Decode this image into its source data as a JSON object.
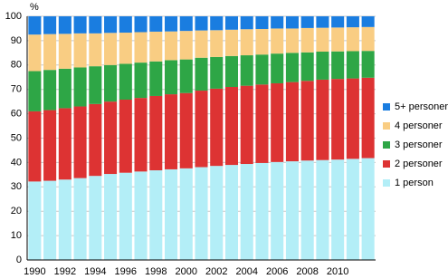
{
  "chart_data": {
    "type": "stacked-bar",
    "ylabel": "%",
    "categories": [
      "1990",
      null,
      "1992",
      null,
      "1994",
      null,
      "1996",
      null,
      "1998",
      null,
      "2000",
      null,
      "2002",
      null,
      "2004",
      null,
      "2006",
      null,
      "2008",
      null,
      "2010",
      null,
      null
    ],
    "series": [
      {
        "name": "1 person",
        "color": "#b3eef7",
        "values": [
          32.2,
          32.5,
          33.0,
          33.6,
          34.5,
          35.3,
          35.8,
          36.3,
          36.8,
          37.2,
          37.6,
          38.1,
          38.6,
          39.0,
          39.4,
          39.8,
          40.2,
          40.5,
          40.8,
          41.0,
          41.2,
          41.5,
          41.8
        ]
      },
      {
        "name": "2 personer",
        "color": "#dd3333",
        "values": [
          28.8,
          29.0,
          29.3,
          29.4,
          29.5,
          29.7,
          30.0,
          30.2,
          30.5,
          30.8,
          30.9,
          31.4,
          31.7,
          32.0,
          32.1,
          32.2,
          32.3,
          32.5,
          32.7,
          33.0,
          33.1,
          33.0,
          33.0
        ]
      },
      {
        "name": "3 personer",
        "color": "#2ea646",
        "values": [
          16.5,
          16.5,
          16.2,
          16.0,
          15.5,
          15.0,
          14.7,
          14.5,
          14.2,
          14.0,
          13.8,
          13.5,
          13.0,
          12.7,
          12.5,
          12.3,
          12.2,
          12.0,
          11.7,
          11.5,
          11.3,
          11.2,
          11.0
        ]
      },
      {
        "name": "4 personer",
        "color": "#f9cd83",
        "values": [
          15.0,
          14.7,
          14.3,
          14.0,
          13.5,
          13.2,
          12.8,
          12.5,
          12.2,
          11.8,
          11.7,
          11.2,
          11.0,
          10.8,
          10.7,
          10.5,
          10.3,
          10.0,
          10.0,
          9.8,
          9.8,
          9.8,
          9.8
        ]
      },
      {
        "name": "5+ personer",
        "color": "#1a7de0",
        "values": [
          7.5,
          7.3,
          7.2,
          7.0,
          7.0,
          6.8,
          6.7,
          6.5,
          6.3,
          6.2,
          6.0,
          5.8,
          5.7,
          5.5,
          5.3,
          5.2,
          5.0,
          5.0,
          4.8,
          4.7,
          4.6,
          4.5,
          4.4
        ]
      }
    ],
    "ylim": [
      0,
      100
    ],
    "yticks": [
      0,
      10,
      20,
      30,
      40,
      50,
      60,
      70,
      80,
      90,
      100
    ],
    "grid": true,
    "legend": "right"
  }
}
